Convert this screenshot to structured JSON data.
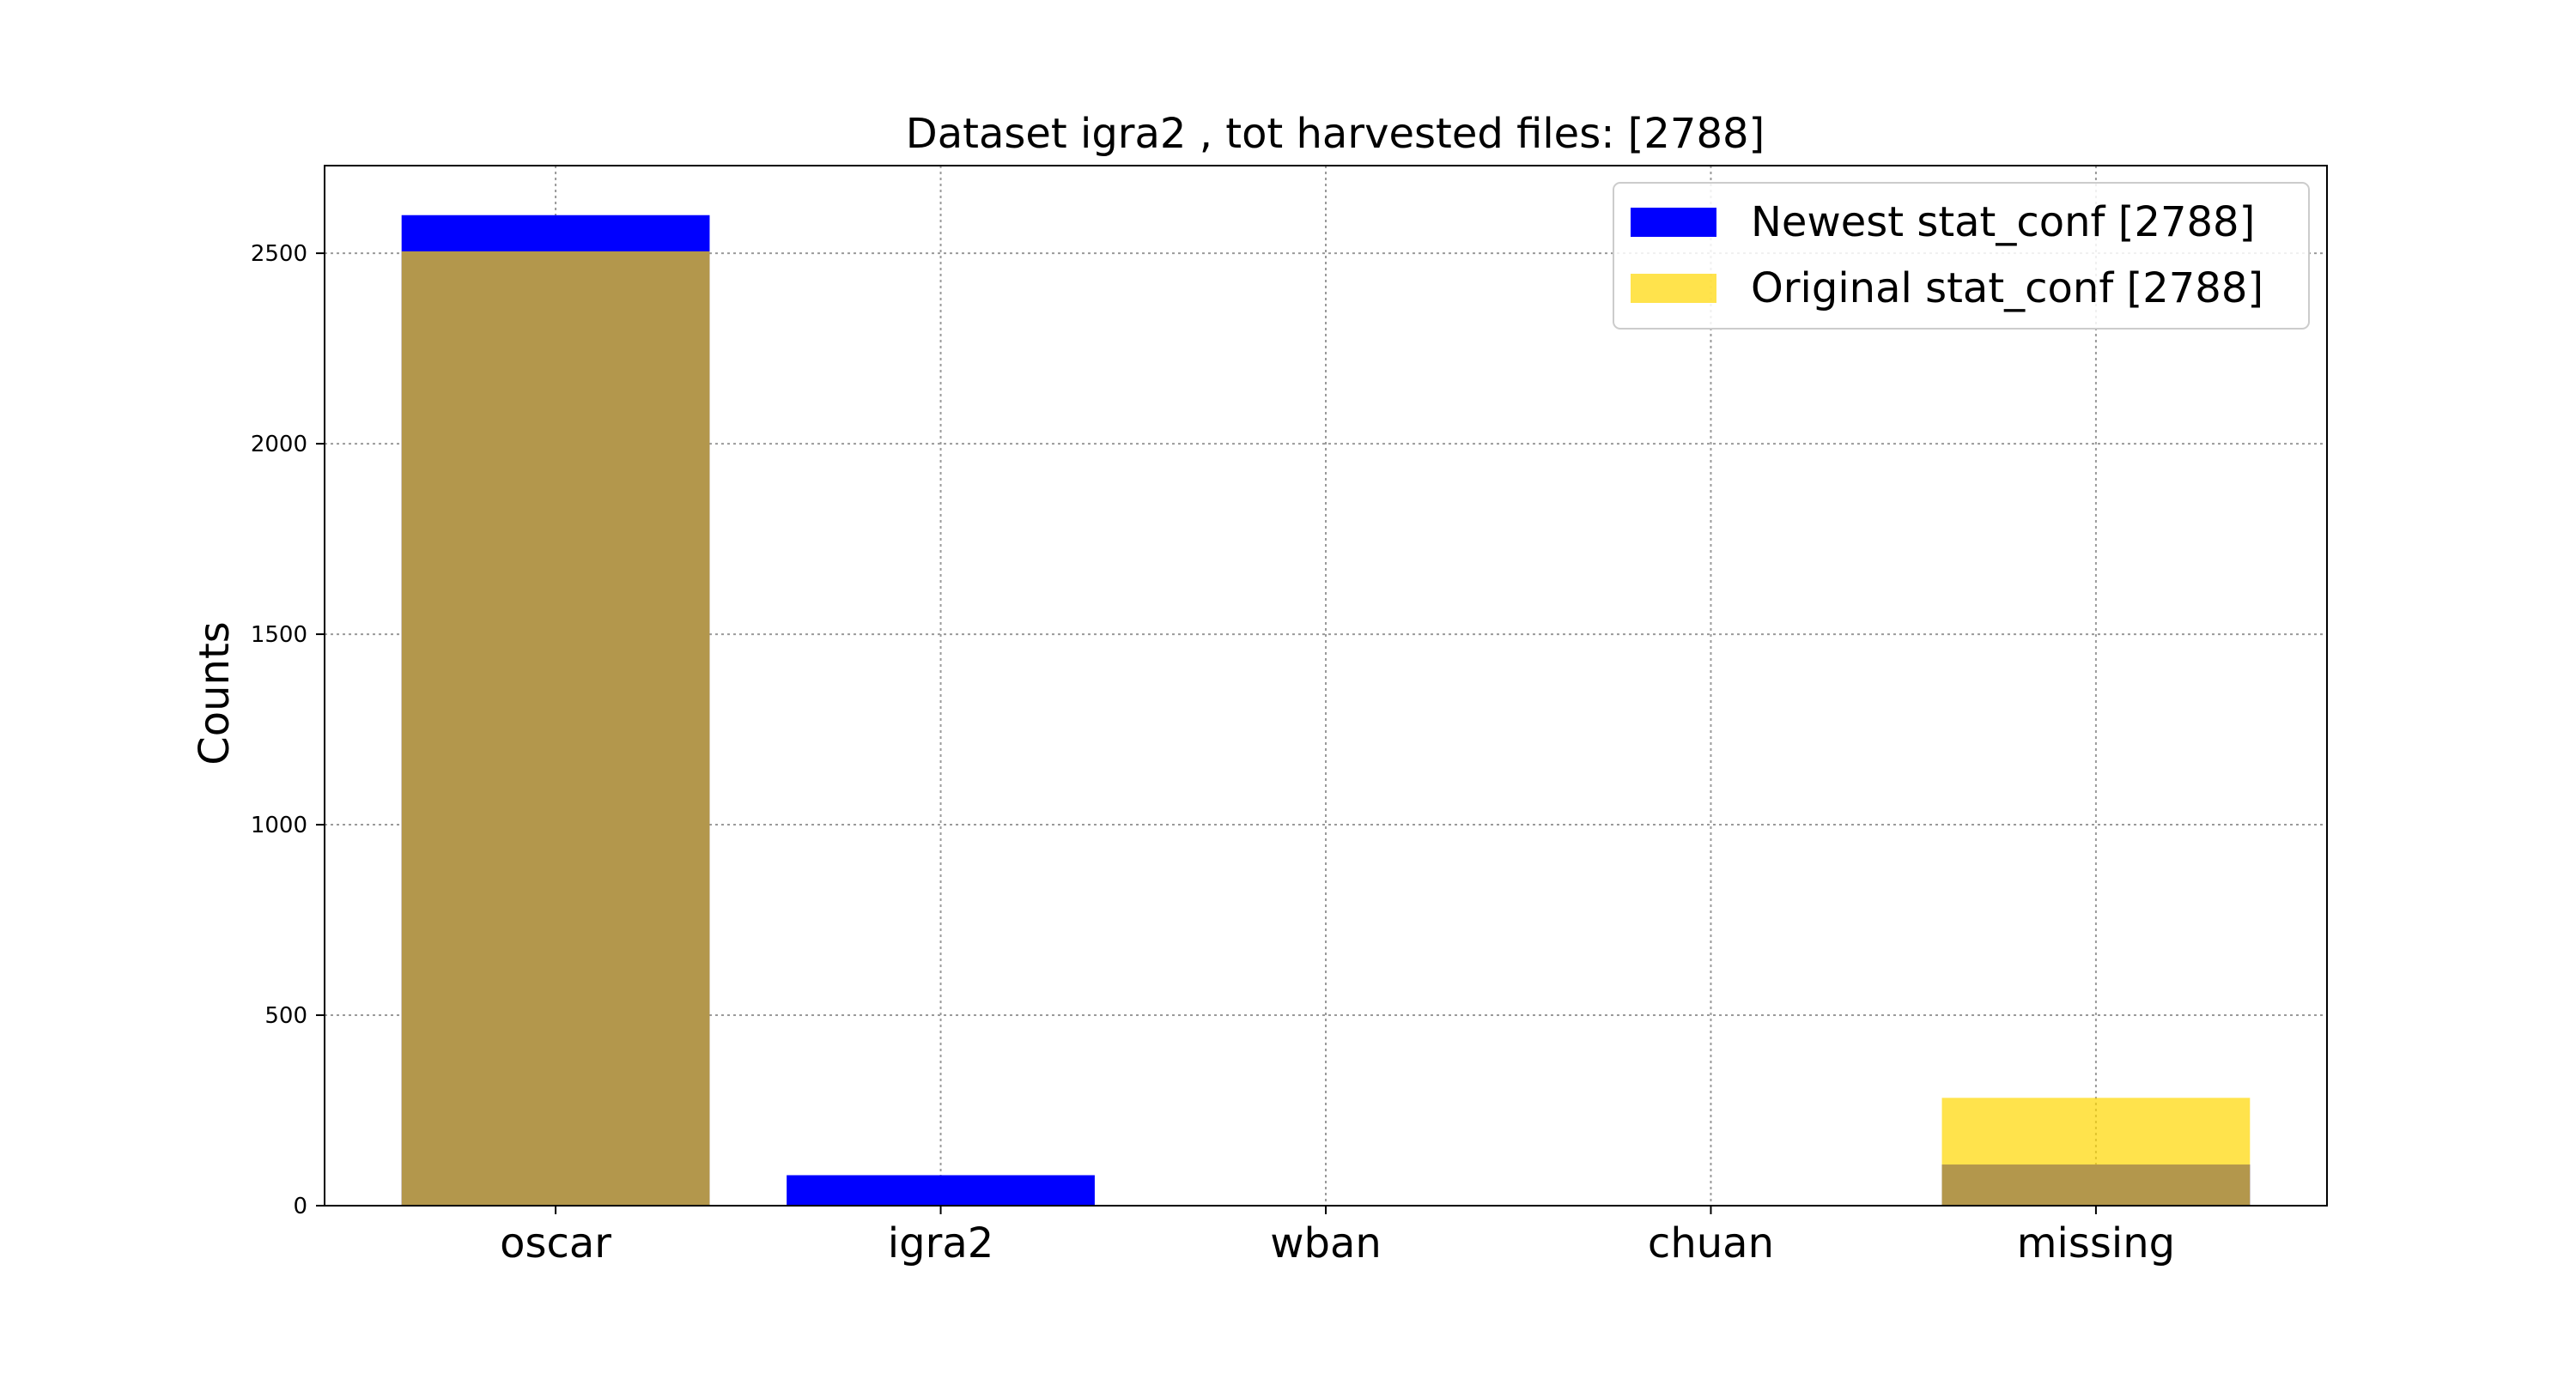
{
  "chart_data": {
    "type": "bar",
    "title": "Dataset igra2 , tot harvested files: [2788]",
    "xlabel": "",
    "ylabel": "Counts",
    "categories": [
      "oscar",
      "igra2",
      "wban",
      "chuan",
      "missing"
    ],
    "series": [
      {
        "name": "Newest stat_conf [2788]",
        "values": [
          2600,
          80,
          0,
          0,
          108
        ],
        "color": "#0000ff",
        "opacity": 1.0
      },
      {
        "name": "Original stat_conf [2788]",
        "values": [
          2505,
          0,
          0,
          0,
          283
        ],
        "color": "#ffd700",
        "opacity": 0.7
      }
    ],
    "yticks": [
      0,
      500,
      1000,
      1500,
      2000,
      2500
    ],
    "ylim": [
      0,
      2730
    ],
    "grid": true,
    "legend_position": "top-right"
  }
}
